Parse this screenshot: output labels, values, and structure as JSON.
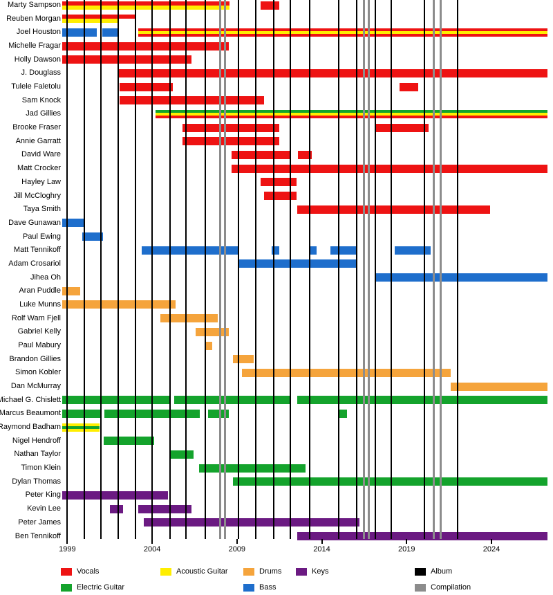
{
  "chart_data": {
    "type": "bar",
    "variant": "membership-timeline-gantt",
    "background": "#ffffff",
    "x_axis": {
      "range": [
        1998.7,
        2027.3
      ],
      "ticks": [
        "1999",
        "2004",
        "2009",
        "2014",
        "2019",
        "2024"
      ],
      "tick_years": [
        1999,
        2004,
        2009,
        2014,
        2019,
        2024
      ]
    },
    "roles": {
      "vocals": {
        "label": "Vocals",
        "color": "#ee1313"
      },
      "acoustic": {
        "label": "Acoustic Guitar",
        "color": "#ffee00"
      },
      "electric": {
        "label": "Electric Guitar",
        "color": "#14a32c"
      },
      "bass": {
        "label": "Bass",
        "color": "#1e6ecc"
      },
      "drums": {
        "label": "Drums",
        "color": "#f5a43c"
      },
      "keys": {
        "label": "Keys",
        "color": "#6b1a82"
      },
      "album": {
        "label": "Album",
        "color": "#000000"
      },
      "compilation": {
        "label": "Compilation",
        "color": "#8c8c8c"
      }
    },
    "members": [
      {
        "name": "Marty Sampson",
        "segments": [
          [
            1998.7,
            2008.55,
            [
              "vocals",
              "acoustic"
            ]
          ],
          [
            2010.4,
            2011.5,
            [
              "vocals"
            ]
          ]
        ]
      },
      {
        "name": "Reuben Morgan",
        "segments": [
          [
            1998.7,
            2002.0,
            [
              "vocals",
              "acoustic"
            ]
          ],
          [
            2002.0,
            2003.05,
            [
              "vocals",
              "_"
            ]
          ]
        ]
      },
      {
        "name": "Joel Houston",
        "segments": [
          [
            1998.7,
            2000.75,
            [
              "bass"
            ]
          ],
          [
            2001.05,
            2002.05,
            [
              "bass"
            ]
          ],
          [
            2003.2,
            2027.3,
            [
              "vocals",
              "acoustic",
              "vocals"
            ]
          ]
        ]
      },
      {
        "name": "Michelle Fragar",
        "segments": [
          [
            1998.7,
            2008.5,
            [
              "vocals"
            ]
          ]
        ]
      },
      {
        "name": "Holly Dawson",
        "segments": [
          [
            1998.7,
            2006.3,
            [
              "vocals"
            ]
          ]
        ]
      },
      {
        "name": "J. Douglass",
        "segments": [
          [
            2001.95,
            2027.3,
            [
              "vocals"
            ]
          ]
        ]
      },
      {
        "name": "Tulele Faletolu",
        "segments": [
          [
            2002.1,
            2005.2,
            [
              "vocals"
            ]
          ],
          [
            2018.6,
            2019.7,
            [
              "vocals"
            ]
          ]
        ]
      },
      {
        "name": "Sam Knock",
        "segments": [
          [
            2002.1,
            2010.6,
            [
              "vocals"
            ]
          ]
        ]
      },
      {
        "name": "Jad Gillies",
        "segments": [
          [
            2004.2,
            2027.3,
            [
              "electric",
              "acoustic",
              "vocals"
            ]
          ]
        ]
      },
      {
        "name": "Brooke Fraser",
        "segments": [
          [
            2005.8,
            2011.5,
            [
              "vocals"
            ]
          ],
          [
            2017.1,
            2020.3,
            [
              "vocals"
            ]
          ]
        ]
      },
      {
        "name": "Annie Garratt",
        "segments": [
          [
            2005.8,
            2011.5,
            [
              "vocals"
            ]
          ]
        ]
      },
      {
        "name": "David Ware",
        "segments": [
          [
            2008.7,
            2012.2,
            [
              "vocals"
            ]
          ],
          [
            2012.6,
            2013.4,
            [
              "vocals"
            ]
          ]
        ]
      },
      {
        "name": "Matt Crocker",
        "segments": [
          [
            2008.7,
            2027.3,
            [
              "vocals"
            ]
          ]
        ]
      },
      {
        "name": "Hayley Law",
        "segments": [
          [
            2010.4,
            2012.5,
            [
              "vocals"
            ]
          ]
        ]
      },
      {
        "name": "Jill McCloghry",
        "segments": [
          [
            2010.6,
            2012.5,
            [
              "vocals"
            ]
          ]
        ]
      },
      {
        "name": "Taya Smith",
        "segments": [
          [
            2012.55,
            2023.9,
            [
              "vocals"
            ]
          ]
        ]
      },
      {
        "name": "Dave Gunawan",
        "segments": [
          [
            1998.7,
            2000.0,
            [
              "bass"
            ]
          ]
        ]
      },
      {
        "name": "Paul Ewing",
        "segments": [
          [
            1999.9,
            2001.1,
            [
              "bass"
            ]
          ]
        ]
      },
      {
        "name": "Matt Tennikoff",
        "segments": [
          [
            2003.4,
            2009.05,
            [
              "bass"
            ]
          ],
          [
            2011.05,
            2011.5,
            [
              "bass"
            ]
          ],
          [
            2013.3,
            2013.7,
            [
              "bass"
            ]
          ],
          [
            2014.5,
            2016.05,
            [
              "bass"
            ]
          ],
          [
            2018.3,
            2020.4,
            [
              "bass"
            ]
          ]
        ]
      },
      {
        "name": "Adam Crosariol",
        "segments": [
          [
            2009.05,
            2016.05,
            [
              "bass"
            ]
          ]
        ]
      },
      {
        "name": "Jihea Oh",
        "segments": [
          [
            2017.1,
            2027.3,
            [
              "bass"
            ]
          ]
        ]
      },
      {
        "name": "Aran Puddle",
        "segments": [
          [
            1998.7,
            1999.75,
            [
              "drums"
            ]
          ]
        ]
      },
      {
        "name": "Luke Munns",
        "segments": [
          [
            1998.7,
            2005.4,
            [
              "drums"
            ]
          ]
        ]
      },
      {
        "name": "Rolf Wam Fjell",
        "segments": [
          [
            2004.5,
            2007.85,
            [
              "drums"
            ]
          ]
        ]
      },
      {
        "name": "Gabriel Kelly",
        "segments": [
          [
            2006.55,
            2008.5,
            [
              "drums"
            ]
          ]
        ]
      },
      {
        "name": "Paul Mabury",
        "segments": [
          [
            2007.15,
            2007.55,
            [
              "drums"
            ]
          ]
        ]
      },
      {
        "name": "Brandon Gillies",
        "segments": [
          [
            2008.75,
            2010.0,
            [
              "drums"
            ]
          ]
        ]
      },
      {
        "name": "Simon Kobler",
        "segments": [
          [
            2009.3,
            2021.6,
            [
              "drums"
            ]
          ]
        ]
      },
      {
        "name": "Dan McMurray",
        "segments": [
          [
            2021.6,
            2027.3,
            [
              "drums"
            ]
          ]
        ]
      },
      {
        "name": "Michael G. Chislett",
        "segments": [
          [
            1998.7,
            2005.05,
            [
              "electric"
            ]
          ],
          [
            2005.3,
            2012.1,
            [
              "electric"
            ]
          ],
          [
            2012.55,
            2027.3,
            [
              "electric"
            ]
          ]
        ]
      },
      {
        "name": "Marcus Beaumont",
        "segments": [
          [
            1998.7,
            2001.0,
            [
              "electric"
            ]
          ],
          [
            2001.2,
            2006.8,
            [
              "electric"
            ]
          ],
          [
            2007.3,
            2008.5,
            [
              "electric"
            ]
          ],
          [
            2015.0,
            2015.5,
            [
              "electric"
            ]
          ]
        ]
      },
      {
        "name": "Raymond Badham",
        "segments": [
          [
            1998.7,
            2000.9,
            [
              "acoustic",
              "electric",
              "acoustic"
            ]
          ]
        ]
      },
      {
        "name": "Nigel Hendroff",
        "segments": [
          [
            2001.15,
            2004.1,
            [
              "electric"
            ]
          ]
        ]
      },
      {
        "name": "Nathan Taylor",
        "segments": [
          [
            2005.05,
            2006.45,
            [
              "electric"
            ]
          ]
        ]
      },
      {
        "name": "Timon Klein",
        "segments": [
          [
            2006.75,
            2013.05,
            [
              "electric"
            ]
          ]
        ]
      },
      {
        "name": "Dylan Thomas",
        "segments": [
          [
            2008.75,
            2027.3,
            [
              "electric"
            ]
          ]
        ]
      },
      {
        "name": "Peter King",
        "segments": [
          [
            1998.7,
            2004.95,
            [
              "keys"
            ]
          ]
        ]
      },
      {
        "name": "Kevin Lee",
        "segments": [
          [
            2001.5,
            2002.3,
            [
              "keys"
            ]
          ],
          [
            2003.2,
            2006.3,
            [
              "keys"
            ]
          ]
        ]
      },
      {
        "name": "Peter James",
        "segments": [
          [
            2003.5,
            2016.2,
            [
              "keys"
            ]
          ]
        ]
      },
      {
        "name": "Ben Tennikoff",
        "segments": [
          [
            2012.55,
            2027.3,
            [
              "keys"
            ]
          ]
        ]
      }
    ],
    "album_lines": [
      1999.0,
      2000.0,
      2001.0,
      2002.0,
      2003.0,
      2004.0,
      2005.05,
      2006.0,
      2007.15,
      2009.1,
      2010.1,
      2011.15,
      2012.15,
      2013.3,
      2015.0,
      2016.05,
      2017.15,
      2018.1,
      2020.05,
      2022.0
    ],
    "compilation_lines": [
      2008.0,
      2008.3,
      2016.5,
      2016.75,
      2020.6,
      2021.0
    ],
    "legend": {
      "items": [
        {
          "role": "vocals",
          "row": 0,
          "col": 0
        },
        {
          "role": "acoustic",
          "row": 0,
          "col": 1
        },
        {
          "role": "drums",
          "row": 0,
          "col": 2
        },
        {
          "role": "keys",
          "row": 0,
          "col": 3
        },
        {
          "role": "album",
          "row": 0,
          "col": 4
        },
        {
          "role": "electric",
          "row": 1,
          "col": 0
        },
        {
          "role": "bass",
          "row": 1,
          "col": 2
        },
        {
          "role": "compilation",
          "row": 1,
          "col": 4
        }
      ]
    }
  }
}
